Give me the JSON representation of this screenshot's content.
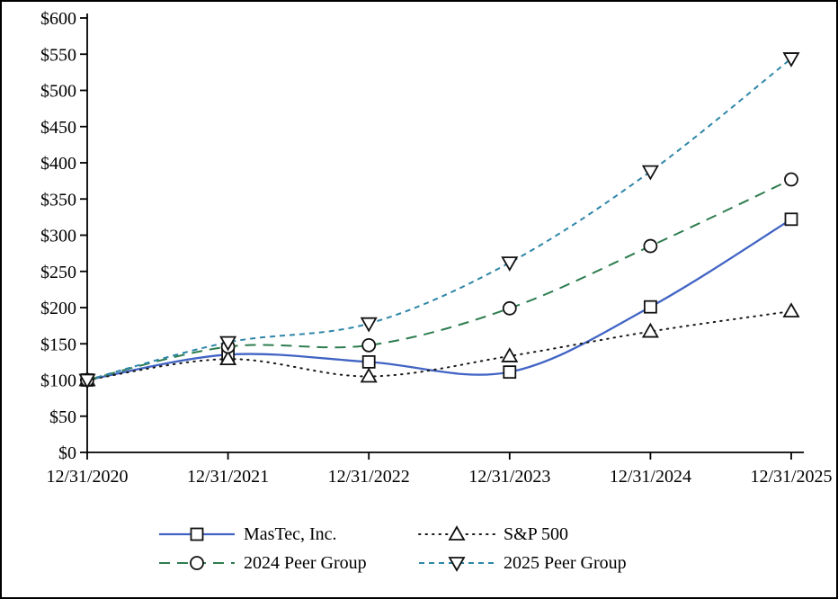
{
  "chart_data": {
    "type": "line",
    "title": "",
    "x_labels": [
      "12/31/2020",
      "12/31/2021",
      "12/31/2022",
      "12/31/2023",
      "12/31/2024",
      "12/31/2025"
    ],
    "xlabel": "",
    "ylabel": "",
    "ylim": [
      0,
      600
    ],
    "y_tick_step": 50,
    "y_tick_labels": [
      "$0",
      "$50",
      "$100",
      "$150",
      "$200",
      "$250",
      "$300",
      "$350",
      "$400",
      "$450",
      "$500",
      "$550",
      "$600"
    ],
    "grid": false,
    "legend_position": "bottom",
    "legend_columns": 2,
    "axis_color": "#000000",
    "marker_outline_color": "#111111",
    "series": [
      {
        "name": "MasTec, Inc.",
        "values": [
          100,
          135,
          125,
          111,
          201,
          322
        ],
        "color": "#4164c4",
        "line_style": "solid",
        "marker": "square"
      },
      {
        "name": "S&P 500",
        "values": [
          100,
          129,
          105,
          133,
          167,
          195
        ],
        "color": "#1a1a1a",
        "line_style": "dotted",
        "marker": "triangle-up"
      },
      {
        "name": "2024 Peer Group",
        "values": [
          100,
          146,
          148,
          199,
          285,
          377
        ],
        "color": "#2e7d50",
        "line_style": "dashed",
        "marker": "circle"
      },
      {
        "name": "2025 Peer Group",
        "values": [
          100,
          152,
          178,
          262,
          388,
          544
        ],
        "color": "#2e86a8",
        "line_style": "short-dash",
        "marker": "triangle-down"
      }
    ]
  }
}
